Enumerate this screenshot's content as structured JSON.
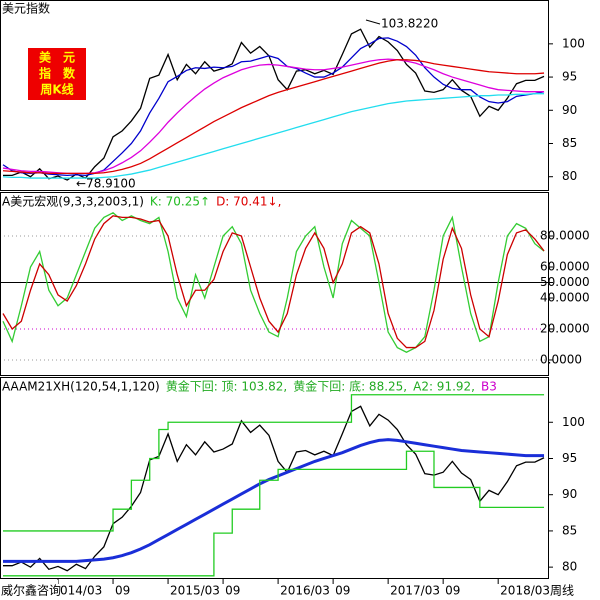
{
  "chart_data": [
    {
      "type": "line",
      "title": "美元指数",
      "badge": [
        "美　元",
        "指　数",
        "周K线"
      ],
      "annotations": [
        "103.8220",
        "←78.9100"
      ],
      "ylim": [
        78,
        106.6
      ],
      "yticks": [
        80,
        85,
        90,
        95,
        100
      ],
      "grid": false,
      "series": [
        {
          "color": "#000000",
          "values": [
            80.2,
            80.2,
            80.7,
            80.0,
            81.2,
            79.7,
            80.1,
            79.5,
            80.4,
            79.8,
            81.5,
            82.8,
            86.0,
            86.9,
            88.4,
            90.3,
            94.8,
            95.3,
            98.4,
            94.6,
            96.9,
            95.5,
            97.3,
            95.9,
            96.3,
            97.0,
            100.2,
            98.6,
            99.6,
            98.2,
            94.6,
            93.1,
            95.9,
            96.1,
            95.5,
            96.0,
            95.4,
            98.4,
            101.5,
            102.2,
            99.5,
            101.1,
            100.3,
            99.0,
            96.9,
            95.6,
            92.9,
            92.7,
            93.1,
            94.6,
            93.0,
            92.1,
            89.1,
            90.6,
            90.0,
            91.8,
            94.0,
            94.5,
            94.5,
            95.1
          ]
        },
        {
          "color": "#0000cc",
          "values": [
            81.8,
            80.9,
            80.6,
            80.5,
            80.6,
            80.4,
            80.3,
            80.2,
            80.3,
            80.2,
            80.5,
            81.0,
            82.3,
            83.6,
            85.0,
            86.9,
            89.6,
            91.8,
            94.3,
            95.1,
            96.0,
            96.4,
            96.3,
            96.5,
            96.4,
            96.6,
            97.3,
            97.4,
            97.8,
            98.2,
            97.8,
            96.6,
            96.3,
            95.6,
            95.0,
            95.0,
            95.6,
            96.5,
            97.9,
            99.3,
            100.0,
            100.8,
            100.9,
            100.4,
            99.6,
            98.3,
            96.4,
            95.0,
            93.9,
            93.3,
            93.1,
            93.1,
            92.0,
            91.3,
            91.1,
            91.3,
            92.1,
            92.3,
            92.5,
            92.8
          ]
        },
        {
          "color": "#dd00dd",
          "values": [
            81.3,
            81.1,
            80.9,
            80.8,
            80.8,
            80.7,
            80.6,
            80.5,
            80.5,
            80.5,
            80.6,
            80.9,
            81.4,
            82.1,
            82.9,
            83.9,
            85.2,
            86.6,
            88.2,
            89.6,
            90.9,
            92.1,
            93.2,
            94.1,
            94.9,
            95.5,
            96.1,
            96.5,
            96.8,
            96.9,
            96.8,
            96.6,
            96.4,
            96.2,
            96.1,
            96.1,
            96.3,
            96.5,
            96.8,
            97.1,
            97.4,
            97.6,
            97.7,
            97.6,
            97.4,
            97.1,
            96.6,
            96.1,
            95.5,
            95.0,
            94.6,
            94.2,
            93.8,
            93.4,
            93.1,
            93.0,
            92.9,
            92.8,
            92.8,
            92.8
          ]
        },
        {
          "color": "#dd0000",
          "values": [
            80.9,
            80.8,
            80.7,
            80.6,
            80.6,
            80.5,
            80.5,
            80.5,
            80.5,
            80.5,
            80.5,
            80.6,
            80.8,
            81.1,
            81.5,
            82.0,
            82.7,
            83.5,
            84.3,
            85.1,
            85.9,
            86.7,
            87.5,
            88.3,
            89.0,
            89.7,
            90.4,
            91.0,
            91.6,
            92.2,
            92.7,
            93.1,
            93.5,
            93.9,
            94.3,
            94.7,
            95.1,
            95.5,
            95.9,
            96.3,
            96.7,
            97.1,
            97.4,
            97.6,
            97.6,
            97.5,
            97.3,
            97.0,
            96.8,
            96.6,
            96.4,
            96.2,
            96.0,
            95.8,
            95.7,
            95.6,
            95.5,
            95.5,
            95.5,
            95.6
          ]
        },
        {
          "color": "#22ddee",
          "values": [
            80.0,
            79.9,
            79.9,
            79.8,
            79.8,
            79.8,
            79.8,
            79.8,
            79.8,
            79.8,
            79.8,
            79.9,
            80.0,
            80.2,
            80.4,
            80.7,
            81.0,
            81.4,
            81.8,
            82.2,
            82.6,
            83.0,
            83.4,
            83.8,
            84.2,
            84.6,
            85.0,
            85.4,
            85.8,
            86.2,
            86.6,
            87.0,
            87.4,
            87.8,
            88.2,
            88.6,
            89.0,
            89.4,
            89.8,
            90.1,
            90.4,
            90.7,
            91.0,
            91.2,
            91.4,
            91.5,
            91.6,
            91.7,
            91.8,
            91.9,
            92.0,
            92.1,
            92.2,
            92.2,
            92.3,
            92.3,
            92.4,
            92.4,
            92.5,
            92.5
          ]
        }
      ]
    },
    {
      "type": "line",
      "legend": [
        {
          "text": "A美元宏观(9,3,3,2003,1)",
          "color": "#000000"
        },
        {
          "text": "K: 70.25↑",
          "color": "#22bb22"
        },
        {
          "text": "D: 70.41↓,",
          "color": "#dd0000"
        }
      ],
      "ylim": [
        -9.7,
        108.4
      ],
      "yticks": [
        {
          "value": 80,
          "label": "80.0000"
        },
        {
          "value": 60,
          "label": "60.0000"
        },
        {
          "value": 50,
          "label": "50.0000"
        },
        {
          "value": 40,
          "label": "40.0000"
        },
        {
          "value": 20,
          "label": "20.0000"
        },
        {
          "value": 0,
          "label": "0.0000"
        }
      ],
      "grid": true,
      "grid_colors": [
        "#999999",
        "none",
        "#000000",
        "none",
        "#cc00cc",
        "#999999"
      ],
      "series": [
        {
          "color": "#33cc33",
          "values": [
            25,
            12,
            35,
            60,
            70,
            45,
            35,
            40,
            55,
            70,
            85,
            92,
            95,
            90,
            93,
            90,
            88,
            92,
            70,
            40,
            28,
            55,
            40,
            60,
            80,
            86,
            75,
            45,
            30,
            18,
            15,
            40,
            70,
            80,
            86,
            60,
            40,
            75,
            90,
            85,
            80,
            50,
            18,
            8,
            5,
            8,
            15,
            45,
            80,
            92,
            60,
            30,
            12,
            15,
            50,
            80,
            88,
            85,
            75,
            70.25
          ]
        },
        {
          "color": "#cc0000",
          "values": [
            30,
            20,
            25,
            45,
            62,
            55,
            42,
            38,
            48,
            62,
            78,
            88,
            93,
            92,
            92,
            91,
            89,
            90,
            80,
            55,
            35,
            45,
            45,
            52,
            70,
            82,
            80,
            60,
            40,
            25,
            18,
            30,
            55,
            72,
            82,
            72,
            50,
            62,
            82,
            86,
            82,
            62,
            30,
            14,
            8,
            8,
            12,
            32,
            65,
            85,
            72,
            42,
            20,
            15,
            38,
            68,
            82,
            84,
            78,
            70.41
          ]
        }
      ]
    },
    {
      "type": "line",
      "legend": [
        {
          "text": "AAAM21XH(120,54,1,120)",
          "color": "#000000"
        },
        {
          "text": "黄金下回: 顶: 103.82,",
          "color": "#22aa22"
        },
        {
          "text": "黄金下回: 底: 88.25,",
          "color": "#22aa22"
        },
        {
          "text": "A2: 91.92,",
          "color": "#22aa22"
        },
        {
          "text": "B3",
          "color": "#cc00cc"
        }
      ],
      "source": "威尔鑫咨询",
      "period": "周线",
      "categories": [
        null,
        null,
        null,
        null,
        null,
        null,
        "014/03",
        null,
        null,
        null,
        null,
        null,
        "09",
        null,
        null,
        null,
        null,
        null,
        "2015/03",
        null,
        null,
        null,
        null,
        null,
        "09",
        null,
        null,
        null,
        null,
        null,
        "2016/03",
        null,
        null,
        null,
        null,
        null,
        "09",
        null,
        null,
        null,
        null,
        null,
        "2017/03",
        null,
        null,
        null,
        null,
        null,
        "09",
        null,
        null,
        null,
        null,
        null,
        "2018/03",
        null,
        null,
        null,
        null,
        null
      ],
      "ylim": [
        78.5,
        106.25
      ],
      "yticks": [
        80,
        85,
        90,
        95,
        100
      ],
      "grid": false,
      "series": [
        {
          "color": "#000000",
          "values": [
            80.2,
            80.2,
            80.7,
            80.0,
            81.2,
            79.7,
            80.1,
            79.5,
            80.4,
            79.8,
            81.5,
            82.8,
            86.0,
            86.9,
            88.4,
            90.3,
            94.8,
            95.3,
            98.4,
            94.6,
            96.9,
            95.5,
            97.3,
            95.9,
            96.3,
            97.0,
            100.2,
            98.6,
            99.6,
            98.2,
            94.6,
            93.1,
            95.9,
            96.1,
            95.5,
            96.0,
            95.4,
            98.4,
            101.5,
            102.2,
            99.5,
            101.1,
            100.3,
            99.0,
            96.9,
            95.6,
            92.9,
            92.7,
            93.1,
            94.6,
            93.0,
            92.1,
            89.1,
            90.6,
            90.0,
            91.8,
            94.0,
            94.5,
            94.5,
            95.1
          ]
        },
        {
          "color": "#1a2ed8",
          "values": [
            80.8,
            80.8,
            80.8,
            80.8,
            80.8,
            80.8,
            80.8,
            80.8,
            80.8,
            80.9,
            81.0,
            81.1,
            81.3,
            81.6,
            82.0,
            82.5,
            83.1,
            83.8,
            84.5,
            85.2,
            85.9,
            86.6,
            87.3,
            88.0,
            88.7,
            89.4,
            90.1,
            90.8,
            91.5,
            92.1,
            92.6,
            93.1,
            93.6,
            94.1,
            94.6,
            95.0,
            95.4,
            95.8,
            96.3,
            96.8,
            97.2,
            97.5,
            97.6,
            97.5,
            97.3,
            97.1,
            96.9,
            96.7,
            96.5,
            96.3,
            96.1,
            96.0,
            95.9,
            95.8,
            95.7,
            95.6,
            95.5,
            95.4,
            95.4,
            95.4
          ]
        },
        {
          "color": "#22cc22",
          "steps": true,
          "values": [
            85.0,
            85.0,
            85.0,
            85.0,
            85.0,
            85.0,
            85.0,
            85.0,
            85.0,
            85.0,
            85.0,
            85.0,
            88.0,
            88.0,
            92.0,
            92.0,
            95.0,
            99.0,
            100.0,
            100.0,
            100.0,
            100.0,
            100.0,
            100.0,
            100.0,
            100.0,
            100.0,
            100.0,
            100.0,
            100.0,
            100.0,
            100.0,
            100.0,
            100.0,
            100.0,
            100.0,
            100.0,
            100.0,
            103.8,
            103.8,
            103.8,
            103.8,
            103.8,
            103.8,
            103.8,
            103.8,
            103.8,
            103.8,
            103.8,
            103.8,
            103.8,
            103.8,
            103.8,
            103.8,
            103.8,
            103.8,
            103.8,
            103.8,
            103.8,
            103.8
          ]
        },
        {
          "color": "#22cc22",
          "steps": true,
          "values": [
            78.8,
            78.8,
            78.8,
            78.8,
            78.8,
            78.8,
            78.8,
            78.8,
            78.8,
            78.8,
            78.8,
            78.8,
            78.8,
            78.8,
            78.8,
            78.8,
            78.8,
            78.8,
            78.8,
            78.8,
            78.8,
            78.8,
            78.8,
            84.7,
            84.7,
            88.0,
            88.0,
            88.0,
            92.0,
            92.0,
            93.5,
            93.5,
            93.5,
            93.5,
            93.5,
            93.5,
            93.5,
            93.5,
            93.5,
            93.5,
            93.5,
            93.5,
            93.5,
            93.5,
            96.0,
            96.0,
            96.0,
            91.0,
            91.0,
            91.0,
            91.0,
            91.0,
            88.25,
            88.25,
            88.25,
            88.25,
            88.25,
            88.25,
            88.25,
            88.25
          ]
        }
      ]
    }
  ]
}
